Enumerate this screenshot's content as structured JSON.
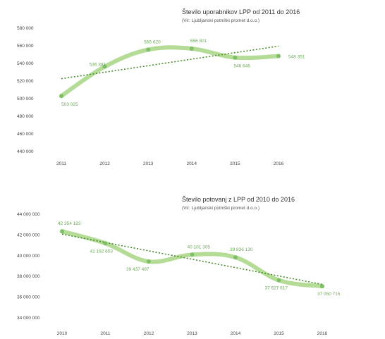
{
  "colors": {
    "line": "#b4dc96",
    "marker": "#7fbf66",
    "trend": "#4a8a2e",
    "label": "#6aaa55",
    "text": "#333333"
  },
  "chart_data": [
    {
      "type": "line",
      "title": "Število uporabnikov LPP od 2011 do 2016",
      "subtitle": "(Vir: Ljubljanski potniški promet d.o.o.)",
      "categories": [
        "2011",
        "2012",
        "2013",
        "2014",
        "2015",
        "2016"
      ],
      "series": [
        {
          "values": [
            503025,
            536381,
            555620,
            556801,
            546646,
            548351
          ]
        }
      ],
      "data_labels": [
        "503 025",
        "536 381",
        "555 620",
        "556 801",
        "546 646",
        "548 351"
      ],
      "trendline": "linear",
      "ylim": [
        440000,
        580000
      ],
      "yticks": [
        440000,
        460000,
        480000,
        500000,
        520000,
        540000,
        560000,
        580000
      ],
      "ytick_labels": [
        "440 000",
        "460 000",
        "480 000",
        "500 000",
        "520 000",
        "540 000",
        "560 000",
        "580 000"
      ],
      "grid": false,
      "legend": "none"
    },
    {
      "type": "line",
      "title": "Število potovanj z LPP od 2010 do 2016",
      "subtitle": "(Vir: Ljubljanski potniški promet d.o.o.)",
      "categories": [
        "2010",
        "2011",
        "2012",
        "2013",
        "2014",
        "2015",
        "2016"
      ],
      "series": [
        {
          "values": [
            42354183,
            41192653,
            39437497,
            40101305,
            39836130,
            37627617,
            37050715
          ]
        }
      ],
      "data_labels": [
        "42 354 183",
        "41 192 653",
        "39 437 497",
        "40 101 305",
        "39 836 130",
        "37 627 617",
        "37 050 715"
      ],
      "trendline": "linear",
      "ylim": [
        34000000,
        44000000
      ],
      "yticks": [
        34000000,
        36000000,
        38000000,
        40000000,
        42000000,
        44000000
      ],
      "ytick_labels": [
        "34 000 000",
        "36 000 000",
        "38 000 000",
        "40 000 000",
        "42 000 000",
        "44 000 000"
      ],
      "grid": false,
      "legend": "none"
    }
  ]
}
